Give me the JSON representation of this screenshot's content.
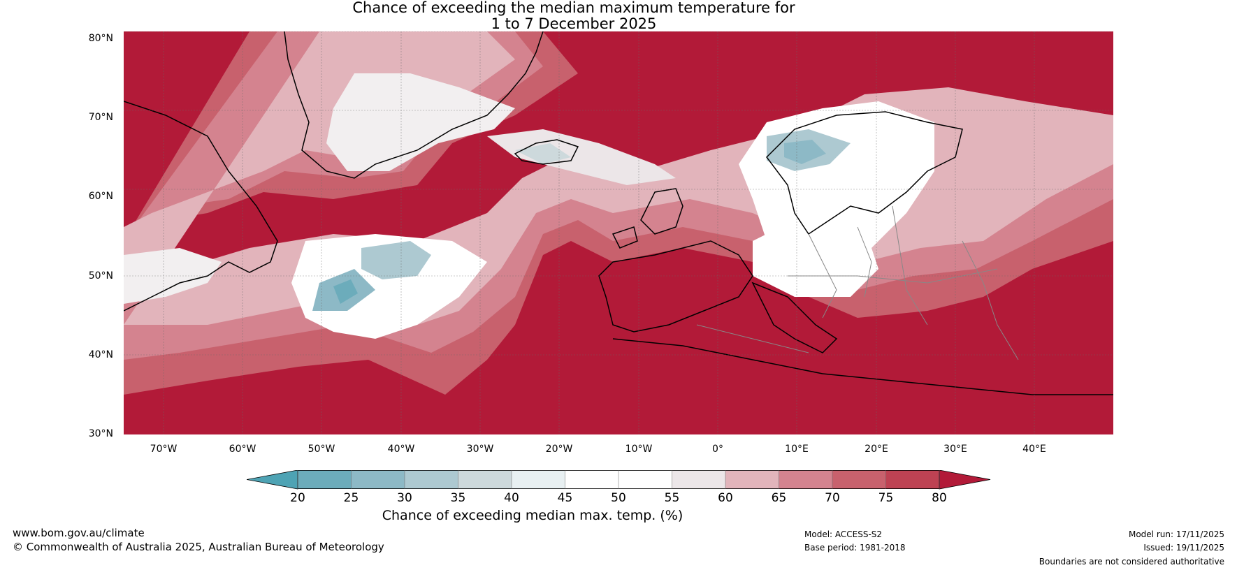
{
  "title": {
    "line1": "Chance of exceeding the median maximum temperature for",
    "line2": "1 to 7 December 2025"
  },
  "map": {
    "lat_labels": [
      "80°N",
      "70°N",
      "60°N",
      "50°N",
      "40°N",
      "30°N"
    ],
    "lon_labels": [
      "70°W",
      "60°W",
      "50°W",
      "40°W",
      "30°W",
      "20°W",
      "10°W",
      "0°",
      "10°E",
      "20°E",
      "30°E",
      "40°E"
    ]
  },
  "colorbar": {
    "ticks": [
      "20",
      "25",
      "30",
      "35",
      "40",
      "45",
      "50",
      "55",
      "60",
      "65",
      "70",
      "75",
      "80"
    ],
    "colors": [
      "#4ea3b4",
      "#6cacbb",
      "#8db9c6",
      "#adc9d1",
      "#cdd9dc",
      "#e8f0f2",
      "#ffffff",
      "#ffffff",
      "#ece6e8",
      "#e2b4bb",
      "#d4838f",
      "#c8616d",
      "#be4253",
      "#b21a38"
    ],
    "label": "Chance of exceeding median max. temp. (%)"
  },
  "footer": {
    "website": "www.bom.gov.au/climate",
    "copyright": "© Commonwealth of Australia 2025, Australian Bureau of Meteorology",
    "model": "Model: ACCESS-S2",
    "base_period": "Base period: 1981-2018",
    "model_run": "Model run: 17/11/2025",
    "issued": "Issued: 19/11/2025",
    "disclaimer": "Boundaries are not considered authoritative"
  }
}
